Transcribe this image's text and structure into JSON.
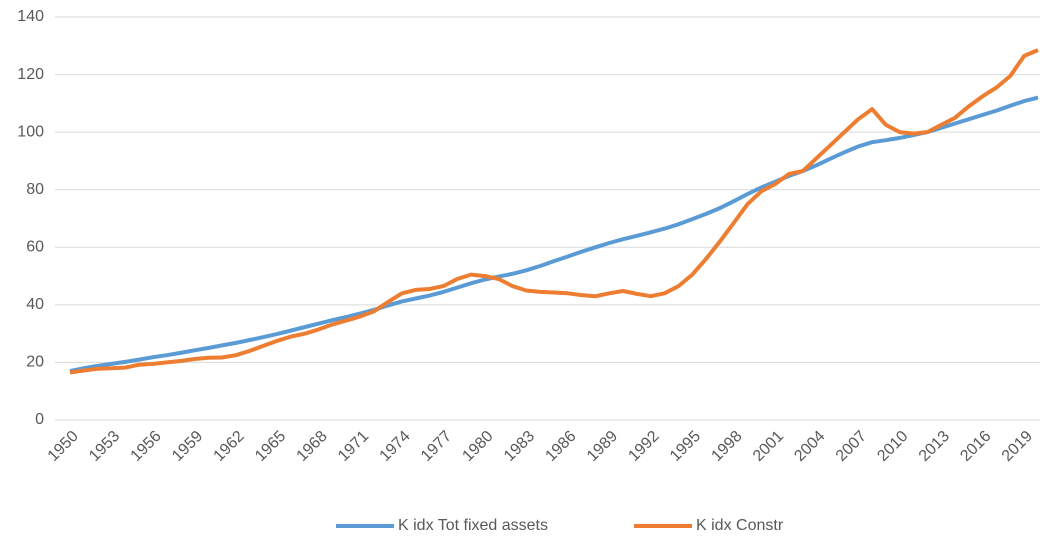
{
  "chart_data": {
    "type": "line",
    "x": [
      1950,
      1951,
      1952,
      1953,
      1954,
      1955,
      1956,
      1957,
      1958,
      1959,
      1960,
      1961,
      1962,
      1963,
      1964,
      1965,
      1966,
      1967,
      1968,
      1969,
      1970,
      1971,
      1972,
      1973,
      1974,
      1975,
      1976,
      1977,
      1978,
      1979,
      1980,
      1981,
      1982,
      1983,
      1984,
      1985,
      1986,
      1987,
      1988,
      1989,
      1990,
      1991,
      1992,
      1993,
      1994,
      1995,
      1996,
      1997,
      1998,
      1999,
      2000,
      2001,
      2002,
      2003,
      2004,
      2005,
      2006,
      2007,
      2008,
      2009,
      2010,
      2011,
      2012,
      2013,
      2014,
      2015,
      2016,
      2017,
      2018,
      2019,
      2020
    ],
    "series": [
      {
        "name": "K idx Tot fixed assets",
        "color": "#5b9bd5",
        "values": [
          17,
          18,
          18.8,
          19.5,
          20.2,
          21,
          21.8,
          22.5,
          23.3,
          24.2,
          25,
          25.9,
          26.8,
          27.8,
          28.8,
          29.9,
          31.1,
          32.3,
          33.5,
          34.7,
          35.8,
          37,
          38.3,
          39.8,
          41.2,
          42.2,
          43.2,
          44.5,
          46,
          47.5,
          48.8,
          49.8,
          50.8,
          52,
          53.5,
          55.2,
          56.8,
          58.5,
          60,
          61.5,
          62.8,
          64,
          65.2,
          66.5,
          68,
          69.8,
          71.6,
          73.6,
          76,
          78.5,
          80.8,
          82.8,
          84.8,
          86.5,
          88.5,
          90.8,
          93,
          95,
          96.5,
          97.2,
          98,
          99,
          100,
          101.5,
          103,
          104.5,
          106,
          107.5,
          109.2,
          110.8,
          112
        ]
      },
      {
        "name": "K idx Constr",
        "color": "#ed7d31",
        "values": [
          16.5,
          17.2,
          17.8,
          18,
          18.2,
          19.2,
          19.5,
          20,
          20.5,
          21.2,
          21.6,
          21.7,
          22.5,
          24,
          25.8,
          27.5,
          29,
          30,
          31.5,
          33.2,
          34.6,
          36,
          37.8,
          41,
          44,
          45.2,
          45.5,
          46.5,
          49,
          50.5,
          50,
          49,
          46.5,
          45,
          44.5,
          44.3,
          44,
          43.4,
          43,
          44,
          44.8,
          43.8,
          43,
          44,
          46.5,
          50.5,
          56,
          62,
          68.5,
          75,
          79.5,
          82,
          85.5,
          86.5,
          91,
          95.5,
          100,
          104.5,
          108,
          102.5,
          100,
          99.5,
          100,
          102.5,
          105,
          109,
          112.5,
          115.5,
          119.5,
          126.5,
          128.5
        ]
      }
    ],
    "xlim": [
      1950,
      2020
    ],
    "xticks": [
      1950,
      1953,
      1956,
      1959,
      1962,
      1965,
      1968,
      1971,
      1974,
      1977,
      1980,
      1983,
      1986,
      1989,
      1992,
      1995,
      1998,
      2001,
      2004,
      2007,
      2010,
      2013,
      2016,
      2019
    ],
    "ylim": [
      0,
      140
    ],
    "yticks": [
      0,
      20,
      40,
      60,
      80,
      100,
      120,
      140
    ],
    "grid": true,
    "legend": "bottom"
  }
}
